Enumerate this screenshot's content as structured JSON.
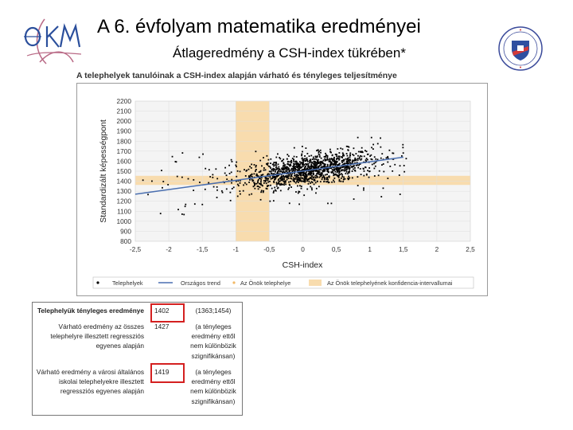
{
  "header": {
    "title": "A 6. évfolyam matematika eredményei",
    "subtitle": "Átlageredmény a CSH-index tükrében*",
    "logo_left_icon": "okm-logo-icon",
    "logo_right_icon": "school-crest-icon"
  },
  "chart_data": {
    "type": "scatter",
    "title": "A telephelyek tanulóinak a CSH-index alapján várható és tényleges teljesítménye",
    "xlabel": "CSH-index",
    "ylabel": "Standardizált képességpont",
    "xlim": [
      -2.5,
      2.5
    ],
    "ylim": [
      800,
      2200
    ],
    "x_ticks": [
      "-2,5",
      "-2",
      "-1,5",
      "-1",
      "-0,5",
      "0",
      "0,5",
      "1",
      "1,5",
      "2",
      "2,5"
    ],
    "y_ticks": [
      "800",
      "900",
      "1000",
      "1100",
      "1200",
      "1300",
      "1400",
      "1500",
      "1600",
      "1700",
      "1800",
      "1900",
      "2000",
      "2100",
      "2200"
    ],
    "grid": true,
    "trend": {
      "x": [
        -2.5,
        1.5
      ],
      "y": [
        1270,
        1640
      ],
      "color": "#4a6fb0"
    },
    "confidence_band": {
      "x_range": [
        -1.0,
        -0.5
      ],
      "y_range": [
        1363,
        1454
      ],
      "color": "#f8dcae"
    },
    "point_cloud": {
      "count": 1300,
      "x_mean": 0.1,
      "x_sd": 0.52,
      "intercept": 1500,
      "slope": 95,
      "sd": 75,
      "outlier_count": 80
    },
    "legend": {
      "position": "bottom",
      "entries": [
        {
          "label": "Telephelyek",
          "symbol": "dot",
          "color": "#000000"
        },
        {
          "label": "Országos trend",
          "symbol": "line",
          "color": "#4a6fb0"
        },
        {
          "label": "Az Önök telephelye",
          "symbol": "dot",
          "color": "#f2b865"
        },
        {
          "label": "Az Önök telephelyének konfidencia-intervallumai",
          "symbol": "rect",
          "color": "#f8dcae"
        }
      ]
    }
  },
  "results_table": {
    "rows": [
      {
        "label": "Telephelyük tényleges eredménye",
        "value": "1402",
        "note": "(1363;1454)",
        "bold": true,
        "highlight": true
      },
      {
        "label": "Várható eredmény az összes telephelyre illesztett regressziós egyenes alapján",
        "value": "1427",
        "note": "(a tényleges eredmény ettől nem különbözik szignifikánsan)",
        "highlight": false
      },
      {
        "label": "Várható eredmény a városi általános iskolai telephelyekre illesztett regressziós egyenes alapján",
        "value": "1419",
        "note": "(a tényleges eredmény ettől nem különbözik szignifikánsan)",
        "highlight": true
      }
    ]
  }
}
